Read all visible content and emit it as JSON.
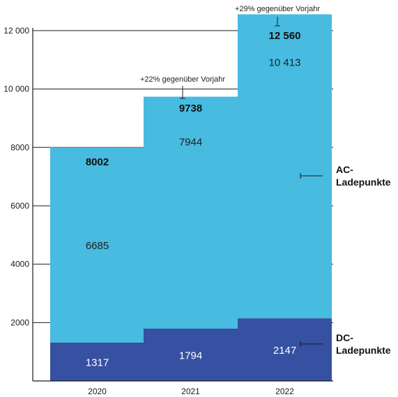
{
  "chart_data": {
    "type": "bar",
    "stacked": true,
    "categories": [
      "2020",
      "2021",
      "2022"
    ],
    "series": [
      {
        "name": "DC-\nLadepunkte",
        "values": [
          1317,
          1794,
          2147
        ],
        "color": "#3650a2",
        "label_color": "#ffffff"
      },
      {
        "name": "AC-\nLadepunkte",
        "values": [
          6685,
          7944,
          10413
        ],
        "color": "#47bbe0",
        "label_color": "#222222"
      }
    ],
    "value_labels": [
      [
        "1317",
        "1794",
        "2147"
      ],
      [
        "6685",
        "7944",
        "10 413"
      ]
    ],
    "totals": [
      "8002",
      "9738",
      "12 560"
    ],
    "annotations": [
      {
        "category": "2021",
        "text": "+22% gegenüber Vorjahr"
      },
      {
        "category": "2022",
        "text": "+29% gegenüber Vorjahr"
      }
    ],
    "yticks": [
      2000,
      4000,
      6000,
      8000,
      10000,
      12000
    ],
    "ytick_labels": [
      "2000",
      "4000",
      "6000",
      "8000",
      "10 000",
      "12 000"
    ],
    "ylim": [
      0,
      12500
    ],
    "grid": true,
    "legend_placement": "right"
  }
}
